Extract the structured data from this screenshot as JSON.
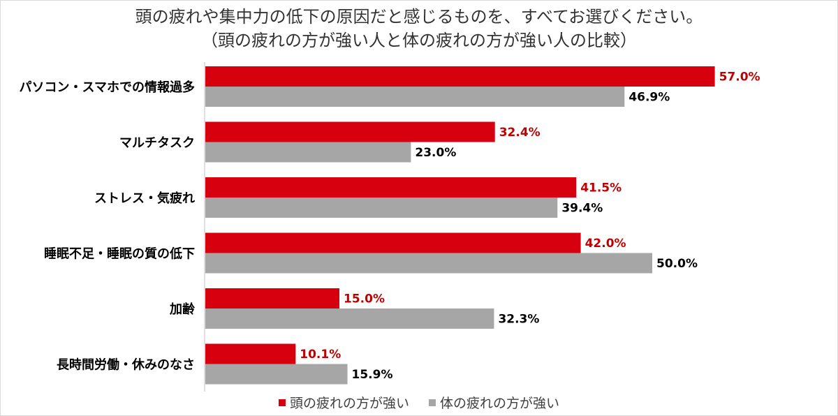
{
  "chart_data": {
    "type": "bar",
    "orientation": "horizontal",
    "title": "頭の疲れや集中力の低下の原因だと感じるものを、すべてお選びください。",
    "subtitle": "（頭の疲れの方が強い人と体の疲れの方が強い人の比較）",
    "categories": [
      "パソコン・スマホでの情報過多",
      "マルチタスク",
      "ストレス・気疲れ",
      "睡眠不足・睡眠の質の低下",
      "加齢",
      "長時間労働・休みのなさ"
    ],
    "series": [
      {
        "name": "頭の疲れの方が強い",
        "color": "#d7000f",
        "label_color": "#c00000",
        "values": [
          57.0,
          32.4,
          41.5,
          42.0,
          15.0,
          10.1
        ],
        "labels": [
          "57.0%",
          "32.4%",
          "41.5%",
          "42.0%",
          "15.0%",
          "10.1%"
        ]
      },
      {
        "name": "体の疲れの方が強い",
        "color": "#a6a6a6",
        "label_color": "#000000",
        "values": [
          46.9,
          23.0,
          39.4,
          50.0,
          32.3,
          15.9
        ],
        "labels": [
          "46.9%",
          "23.0%",
          "39.4%",
          "50.0%",
          "32.3%",
          "15.9%"
        ]
      }
    ],
    "xlim": [
      0,
      100
    ],
    "grid": false,
    "legend_position": "bottom"
  }
}
